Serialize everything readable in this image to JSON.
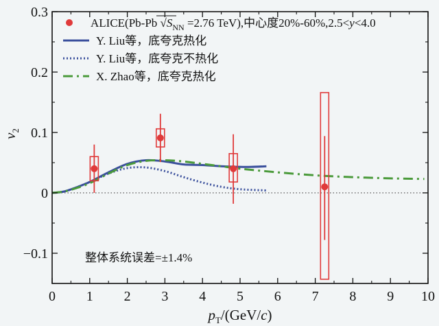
{
  "chart_data": {
    "type": "scatter",
    "xlabel": "pT/(GeV/c)",
    "ylabel": "v2",
    "xlim": [
      0,
      10
    ],
    "ylim": [
      -0.15,
      0.3
    ],
    "xticks": [
      "0",
      "1",
      "2",
      "3",
      "4",
      "5",
      "6",
      "7",
      "8",
      "9",
      "10"
    ],
    "yticks": [
      "-0.1",
      "0",
      "0.1",
      "0.2",
      "0.3"
    ],
    "grid": false,
    "legend_position": "top-left",
    "zero_reference_line": "dotted",
    "data": {
      "name": "ALICE(Pb-Pb √SNN =2.76 TeV),中心度20%-60%,2.5<y<4.0",
      "color": "#e03a3a",
      "x": [
        1.12,
        2.88,
        4.82,
        7.25
      ],
      "y": [
        0.04,
        0.091,
        0.04,
        0.01
      ],
      "stat_err_low": [
        0.04,
        0.04,
        0.058,
        0.088
      ],
      "stat_err_high": [
        0.04,
        0.04,
        0.057,
        0.084
      ],
      "sys_err_low": [
        0.02,
        0.015,
        0.022,
        0.153
      ],
      "sys_err_high": [
        0.02,
        0.015,
        0.025,
        0.156
      ]
    },
    "series": [
      {
        "name": "Y. Liu等，底夸克热化",
        "style": "solid",
        "color": "#3a4f9c",
        "x": [
          0.0,
          0.3,
          0.6,
          1.0,
          1.5,
          2.0,
          2.5,
          3.0,
          3.5,
          4.0,
          4.5,
          5.0,
          5.3,
          5.7
        ],
        "y": [
          0.0,
          0.002,
          0.008,
          0.018,
          0.034,
          0.048,
          0.054,
          0.052,
          0.047,
          0.046,
          0.044,
          0.043,
          0.043,
          0.044
        ]
      },
      {
        "name": "Y. Liu等，底夸克不热化",
        "style": "dotted",
        "color": "#3a4f9c",
        "x": [
          0.0,
          0.3,
          0.6,
          1.0,
          1.5,
          2.0,
          2.5,
          3.0,
          3.5,
          4.0,
          4.5,
          5.0,
          5.7
        ],
        "y": [
          0.0,
          0.002,
          0.008,
          0.018,
          0.032,
          0.041,
          0.042,
          0.036,
          0.026,
          0.017,
          0.01,
          0.006,
          0.004
        ]
      },
      {
        "name": "X. Zhao等，底夸克热化",
        "style": "dash-dot",
        "color": "#4a9a3a",
        "x": [
          0.0,
          0.3,
          0.6,
          1.0,
          1.5,
          2.0,
          2.5,
          3.0,
          3.5,
          4.0,
          4.5,
          5.0,
          6.0,
          7.0,
          8.0,
          9.0,
          9.9
        ],
        "y": [
          0.0,
          0.002,
          0.007,
          0.016,
          0.032,
          0.046,
          0.053,
          0.054,
          0.052,
          0.048,
          0.044,
          0.04,
          0.034,
          0.029,
          0.026,
          0.024,
          0.023
        ]
      }
    ],
    "annotation": "整体系统误差=±1.4%"
  }
}
